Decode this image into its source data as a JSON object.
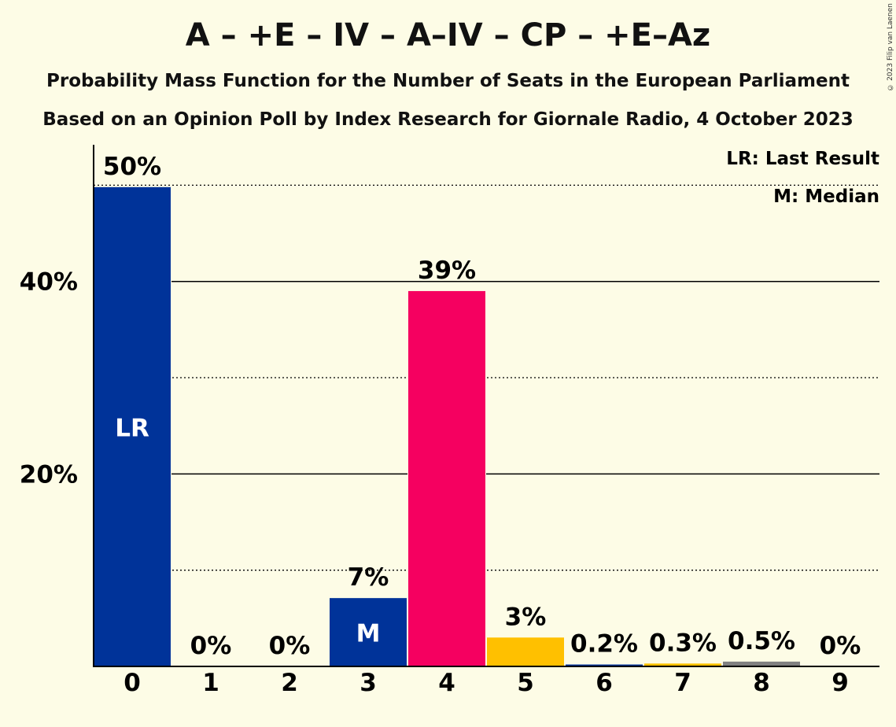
{
  "title": "A – +E – IV – A–IV – CP – +E–Az",
  "subtitle_1": "Probability Mass Function for the Number of Seats in the European Parliament",
  "subtitle_2": "Based on an Opinion Poll by Index Research for Giornale Radio, 4 October 2023",
  "copyright": "© 2023 Filip van Laenen",
  "legend": {
    "last_result": "LR: Last Result",
    "median": "M: Median"
  },
  "colors": {
    "background": "#fdfce6",
    "blue": "#003399",
    "pink": "#f50060",
    "yellow": "#ffc000",
    "grey": "#808080"
  },
  "chart_data": {
    "type": "bar",
    "categories": [
      "0",
      "1",
      "2",
      "3",
      "4",
      "5",
      "6",
      "7",
      "8",
      "9"
    ],
    "values": [
      49.8,
      0,
      0,
      7.1,
      39.0,
      3.0,
      0.2,
      0.3,
      0.5,
      0
    ],
    "value_labels": [
      "50%",
      "0%",
      "0%",
      "7%",
      "39%",
      "3%",
      "0.2%",
      "0.3%",
      "0.5%",
      "0%"
    ],
    "bar_colors": [
      "#003399",
      "#003399",
      "#003399",
      "#003399",
      "#f50060",
      "#ffc000",
      "#003399",
      "#ffc000",
      "#808080",
      "#808080"
    ],
    "inbar_labels": [
      "LR",
      "",
      "",
      "M",
      "",
      "",
      "",
      "",
      "",
      ""
    ],
    "y_ticks": [
      20,
      40
    ],
    "y_tick_labels": [
      "20%",
      "40%"
    ],
    "ylim": [
      0,
      54.2
    ],
    "major_grid": [
      20,
      40
    ],
    "minor_grid": [
      10,
      30,
      50
    ],
    "legend_position": "top-right"
  }
}
